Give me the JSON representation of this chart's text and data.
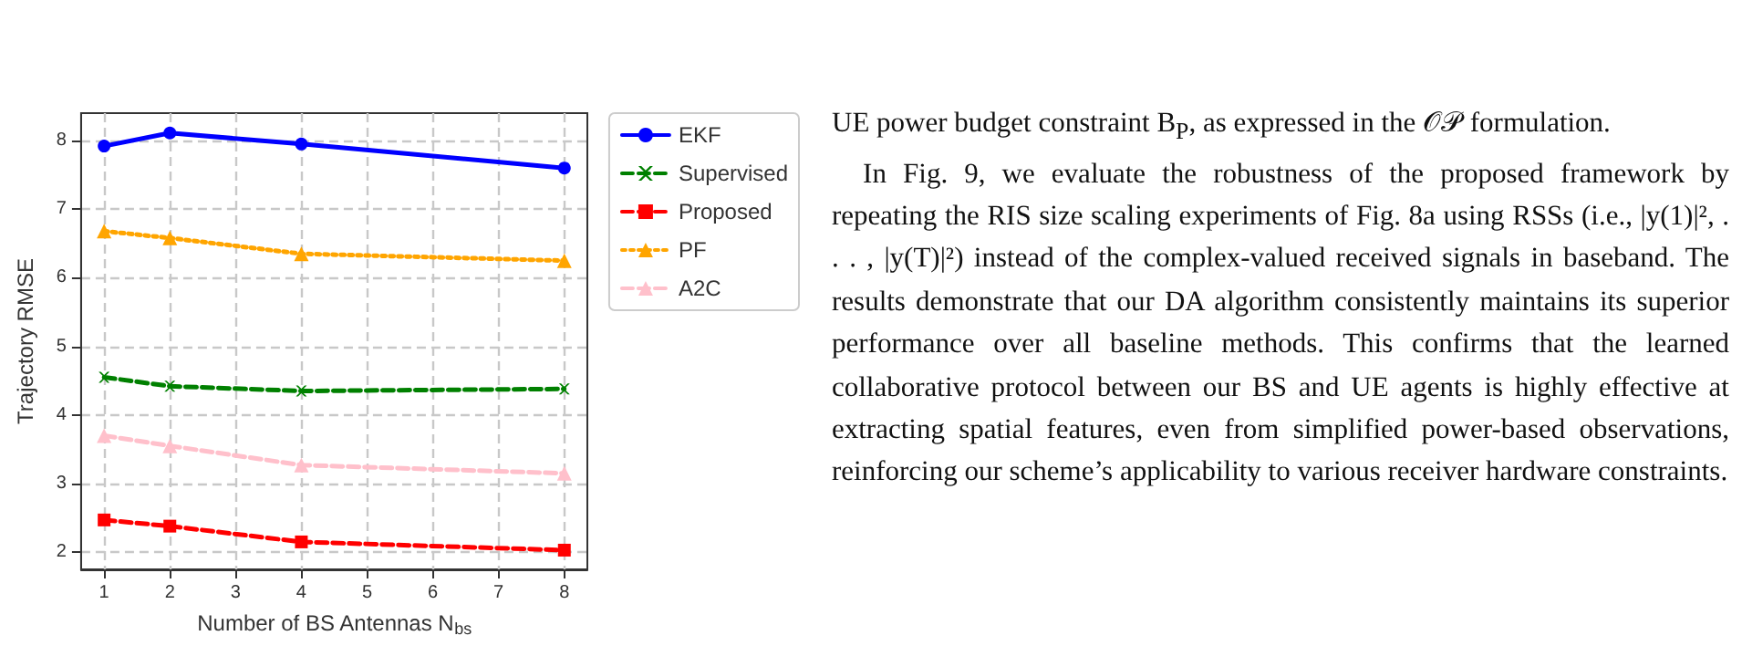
{
  "chart_data": {
    "type": "line",
    "xlabel": "Number of BS Antennas N$_{bs}$",
    "ylabel": "Trajectory RMSE",
    "x": [
      1,
      2,
      4,
      8
    ],
    "series": [
      {
        "name": "EKF",
        "color": "#0000ff",
        "values": [
          7.92,
          8.11,
          7.95,
          7.6
        ],
        "marker": "circle",
        "line_style": "solid"
      },
      {
        "name": "Supervised",
        "color": "#008000",
        "values": [
          4.55,
          4.42,
          4.35,
          4.38
        ],
        "marker": "cross",
        "line_style": "dashed"
      },
      {
        "name": "Proposed",
        "color": "#ff0000",
        "values": [
          2.47,
          2.38,
          2.15,
          2.03
        ],
        "marker": "square",
        "line_style": "dashed"
      },
      {
        "name": "PF",
        "color": "#ffa500",
        "values": [
          6.68,
          6.58,
          6.35,
          6.25
        ],
        "marker": "triangle",
        "line_style": "dotted"
      },
      {
        "name": "A2C",
        "color": "#ffc0cb",
        "values": [
          3.7,
          3.55,
          3.27,
          3.15
        ],
        "marker": "triangle",
        "line_style": "dashed"
      }
    ],
    "xlim": [
      0.65,
      8.35
    ],
    "xticks": [
      1,
      2,
      3,
      4,
      5,
      6,
      7,
      8
    ],
    "ylim": [
      1.75,
      8.4
    ],
    "yticks": [
      2,
      3,
      4,
      5,
      6,
      7,
      8
    ],
    "grid": true,
    "legend": "top right",
    "annotations": [
      "UE power budget constraint B$_{P}$, as expressed in the 𝒪𝒫 formulation.",
      "In Fig. 9, we evaluate the robustness of the proposed framework by repeating the RIS size scaling experiments of Fig. 8a using RSSs (i.e., |y(1)|², . . . , |y(T)|²) instead of the complex-valued received signals in baseband. The results demonstrate that our DA algorithm consistently maintains its superior performance over all baseline methods. This confirms that the learned collaborative protocol between our BS and UE agents is highly effective at extracting spatial features, even from simplified power-based observations, reinforcing our scheme’s applicability to various receiver hardware constraints."
    ]
  }
}
